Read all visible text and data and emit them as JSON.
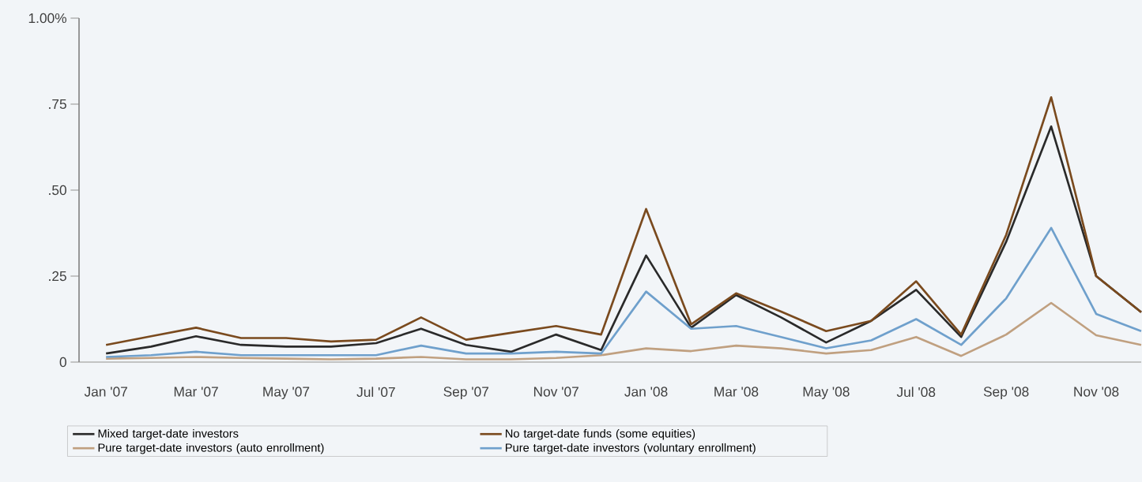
{
  "chart_data": {
    "type": "line",
    "categories": [
      "Jan '07",
      null,
      "Mar '07",
      null,
      "May '07",
      null,
      "Jul '07",
      null,
      "Sep '07",
      null,
      "Nov '07",
      null,
      "Jan '08",
      null,
      "Mar '08",
      null,
      "May '08",
      null,
      "Jul '08",
      null,
      "Sep '08",
      null,
      "Nov '08",
      null
    ],
    "series": [
      {
        "name": "Mixed target-date investors",
        "color": "#2a2a2a",
        "values": [
          0.025,
          0.045,
          0.075,
          0.05,
          0.045,
          0.045,
          0.055,
          0.097,
          0.05,
          0.03,
          0.08,
          0.035,
          0.31,
          0.1,
          0.195,
          0.13,
          0.057,
          0.12,
          0.21,
          0.073,
          0.35,
          0.685,
          0.25,
          0.145
        ]
      },
      {
        "name": "No target-date funds (some equities)",
        "color": "#7a4a1e",
        "values": [
          0.05,
          0.075,
          0.1,
          0.07,
          0.07,
          0.06,
          0.065,
          0.13,
          0.065,
          0.085,
          0.105,
          0.08,
          0.445,
          0.11,
          0.2,
          0.147,
          0.09,
          0.12,
          0.235,
          0.08,
          0.37,
          0.77,
          0.25,
          0.145
        ]
      },
      {
        "name": "Pure target-date investors (auto enrollment)",
        "color": "#c0a080",
        "values": [
          0.01,
          0.012,
          0.015,
          0.012,
          0.01,
          0.008,
          0.01,
          0.015,
          0.008,
          0.008,
          0.012,
          0.02,
          0.04,
          0.032,
          0.048,
          0.04,
          0.025,
          0.035,
          0.073,
          0.018,
          0.08,
          0.172,
          0.078,
          0.05
        ]
      },
      {
        "name": "Pure target-date investors (voluntary enrollment)",
        "color": "#6fa0cc",
        "values": [
          0.015,
          0.02,
          0.03,
          0.02,
          0.02,
          0.02,
          0.02,
          0.048,
          0.025,
          0.025,
          0.03,
          0.025,
          0.205,
          0.097,
          0.105,
          0.073,
          0.04,
          0.063,
          0.125,
          0.05,
          0.185,
          0.39,
          0.14,
          0.09
        ]
      }
    ],
    "ylim": [
      0,
      1
    ],
    "yticks": [
      {
        "value": 0,
        "label": "0"
      },
      {
        "value": 0.25,
        "label": ".25"
      },
      {
        "value": 0.5,
        "label": ".50"
      },
      {
        "value": 0.75,
        "label": ".75"
      },
      {
        "value": 1,
        "label": "1.00%"
      }
    ],
    "legend": "bottom"
  }
}
